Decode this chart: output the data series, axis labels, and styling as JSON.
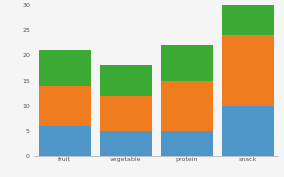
{
  "categories": [
    "fruit",
    "vegetable",
    "protein",
    "snack"
  ],
  "segments": {
    "blue": [
      6,
      5,
      5,
      10
    ],
    "orange": [
      8,
      7,
      10,
      14
    ],
    "green": [
      7,
      6,
      7,
      6
    ]
  },
  "colors": {
    "blue": "#4e96c8",
    "orange": "#f07c20",
    "green": "#3aaa35"
  },
  "ylim": [
    0,
    30
  ],
  "yticks": [
    0,
    5,
    10,
    15,
    20,
    25,
    30
  ],
  "bg_color": "#f5f5f5",
  "bar_width": 0.85,
  "tick_fontsize": 4.5,
  "label_fontsize": 4.5
}
